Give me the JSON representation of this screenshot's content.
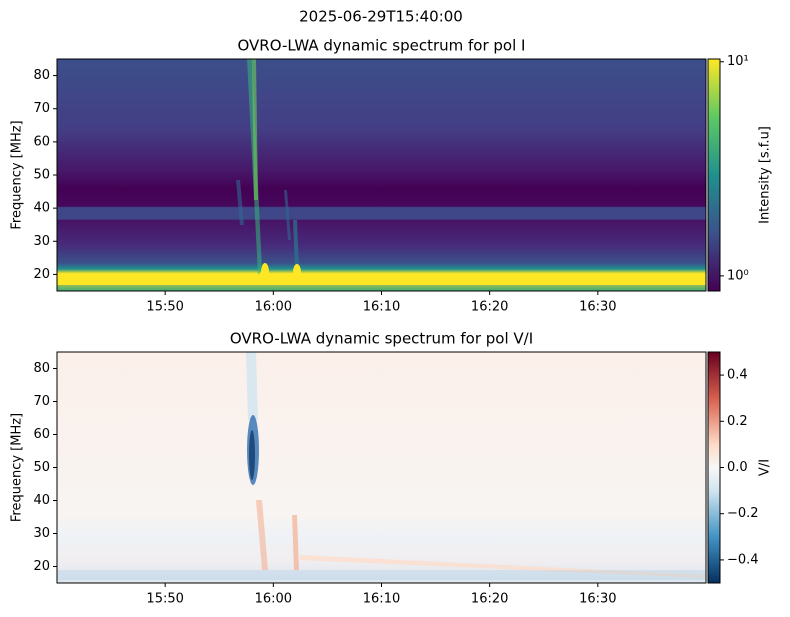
{
  "title": "2025-06-29T15:40:00",
  "chart_data": [
    {
      "type": "heatmap",
      "title": "OVRO-LWA dynamic spectrum for pol I",
      "y_label": "Frequency [MHz]",
      "xlim": [
        "15:40",
        "16:40"
      ],
      "xticks": [
        "15:50",
        "16:00",
        "16:10",
        "16:20",
        "16:30"
      ],
      "ylim": [
        15,
        85
      ],
      "yticks": [
        20,
        30,
        40,
        50,
        60,
        70,
        80
      ],
      "colorbar": {
        "label": "Intensity [s.f.u]",
        "log_scale": true,
        "colormap": "viridis",
        "lim": [
          0.85,
          10.3
        ],
        "ticks": [
          {
            "value": 1,
            "label": "10⁰"
          },
          {
            "value": 10,
            "label": "10¹"
          }
        ]
      }
    },
    {
      "type": "heatmap",
      "title": "OVRO-LWA dynamic spectrum for pol V/I",
      "y_label": "Frequency [MHz]",
      "xlim": [
        "15:40",
        "16:40"
      ],
      "xticks": [
        "15:50",
        "16:00",
        "16:10",
        "16:20",
        "16:30"
      ],
      "ylim": [
        15,
        85
      ],
      "yticks": [
        20,
        30,
        40,
        50,
        60,
        70,
        80
      ],
      "colorbar": {
        "label": "V/I",
        "log_scale": false,
        "colormap": "RdBu_r",
        "lim": [
          -0.5,
          0.5
        ],
        "ticks": [
          {
            "value": -0.4,
            "label": "−0.4"
          },
          {
            "value": -0.2,
            "label": "−0.2"
          },
          {
            "value": 0,
            "label": "0.0"
          },
          0.2,
          0.4
        ]
      }
    }
  ]
}
